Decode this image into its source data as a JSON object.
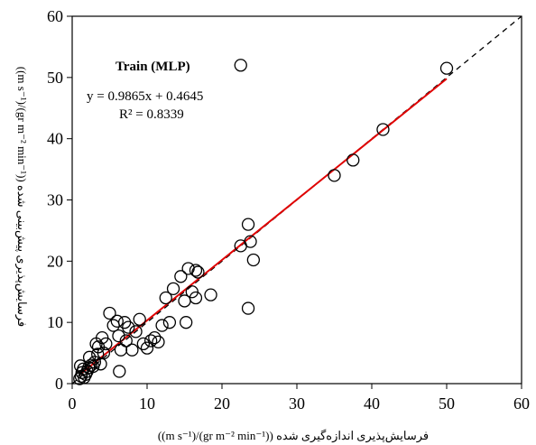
{
  "chart_data": {
    "type": "scatter",
    "xlabel": "فرسایش‌پذیری اندازه‌گیری شده  ((gr m⁻² min⁻¹)/(m s⁻¹))",
    "ylabel": "فرسایش‌پذیری پیش‌بینی شده  ((gr m⁻² min⁻¹)/(m s⁻¹))",
    "xlim": [
      0,
      60
    ],
    "ylim": [
      0,
      60
    ],
    "xticks": [
      0,
      10,
      20,
      30,
      40,
      50,
      60
    ],
    "yticks": [
      0,
      10,
      20,
      30,
      40,
      50,
      60
    ],
    "annotations": {
      "title": "Train (MLP)",
      "equation": "y = 0.9865x + 0.4645",
      "r2": "R² = 0.8339"
    },
    "fit_line": {
      "slope": 0.9865,
      "intercept": 0.4645,
      "x_range": [
        1,
        50
      ],
      "color": "#e00000"
    },
    "reference_line": {
      "type": "1:1",
      "style": "dashed",
      "color": "#000000"
    },
    "points": [
      [
        1.0,
        0.8
      ],
      [
        1.2,
        1.2
      ],
      [
        1.3,
        1.8
      ],
      [
        1.5,
        2.4
      ],
      [
        1.1,
        2.9
      ],
      [
        1.8,
        1.5
      ],
      [
        2.0,
        2.0
      ],
      [
        2.2,
        2.6
      ],
      [
        1.6,
        1.0
      ],
      [
        2.5,
        3.0
      ],
      [
        2.3,
        4.3
      ],
      [
        2.8,
        2.8
      ],
      [
        3.0,
        3.5
      ],
      [
        3.2,
        6.5
      ],
      [
        3.5,
        6.0
      ],
      [
        3.4,
        4.8
      ],
      [
        3.8,
        3.2
      ],
      [
        4.0,
        7.5
      ],
      [
        4.2,
        5.0
      ],
      [
        4.5,
        6.5
      ],
      [
        5.0,
        11.5
      ],
      [
        5.5,
        9.5
      ],
      [
        6.0,
        10.2
      ],
      [
        6.2,
        7.8
      ],
      [
        6.5,
        5.5
      ],
      [
        6.3,
        2.0
      ],
      [
        7.0,
        10.0
      ],
      [
        7.2,
        7.0
      ],
      [
        7.5,
        9.2
      ],
      [
        8.0,
        5.5
      ],
      [
        8.5,
        8.5
      ],
      [
        9.0,
        10.5
      ],
      [
        9.5,
        6.5
      ],
      [
        10.0,
        5.8
      ],
      [
        10.5,
        7.0
      ],
      [
        11.0,
        7.5
      ],
      [
        11.5,
        6.8
      ],
      [
        12.0,
        9.5
      ],
      [
        12.5,
        14.0
      ],
      [
        13.0,
        10.0
      ],
      [
        13.5,
        15.5
      ],
      [
        14.5,
        17.5
      ],
      [
        15.0,
        13.5
      ],
      [
        15.2,
        10.0
      ],
      [
        15.5,
        18.8
      ],
      [
        16.0,
        15.0
      ],
      [
        16.5,
        18.5
      ],
      [
        16.8,
        18.2
      ],
      [
        16.5,
        14.0
      ],
      [
        18.5,
        14.5
      ],
      [
        22.5,
        22.5
      ],
      [
        23.5,
        26.0
      ],
      [
        23.8,
        23.2
      ],
      [
        23.5,
        12.3
      ],
      [
        24.2,
        20.2
      ],
      [
        22.5,
        52.0
      ],
      [
        35.0,
        34.0
      ],
      [
        37.5,
        36.5
      ],
      [
        41.5,
        41.5
      ],
      [
        50.0,
        51.5
      ]
    ]
  }
}
